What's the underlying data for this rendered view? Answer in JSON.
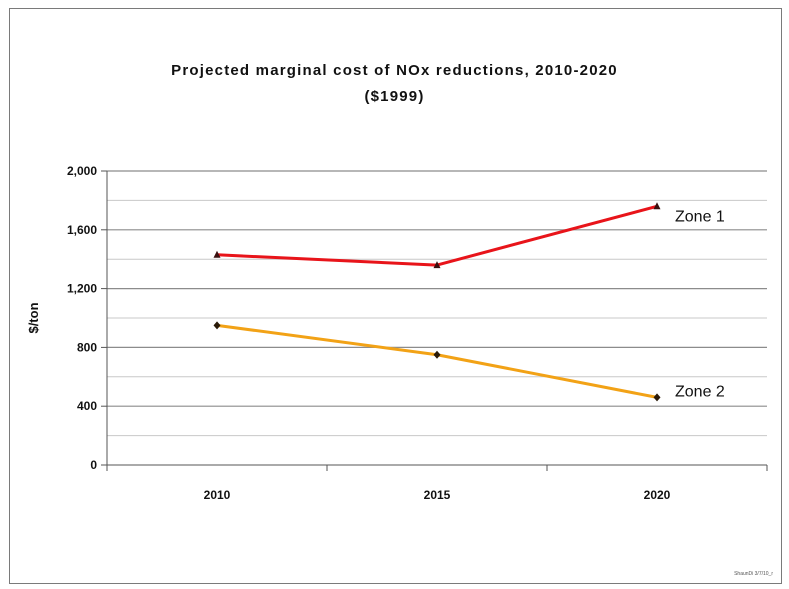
{
  "chart_data": {
    "type": "line",
    "title": "Projected marginal cost of NOx reductions, 2010-2020",
    "subtitle": "($1999)",
    "xlabel": "",
    "ylabel": "$/ton",
    "categories": [
      "2010",
      "2015",
      "2020"
    ],
    "ylim": [
      0,
      2000
    ],
    "yticks": [
      0,
      400,
      800,
      1200,
      1600,
      2000
    ],
    "ytick_labels": [
      "0",
      "400",
      "800",
      "1,200",
      "1,600",
      "2,000"
    ],
    "grid": true,
    "series": [
      {
        "name": "Zone 1",
        "values": [
          1430,
          1360,
          1760
        ],
        "color": "#e8141a",
        "marker": "triangle"
      },
      {
        "name": "Zone 2",
        "values": [
          950,
          750,
          460
        ],
        "color": "#f2a216",
        "marker": "diamond"
      }
    ]
  },
  "footer_text": "ShaunDi 3/7/10_r"
}
